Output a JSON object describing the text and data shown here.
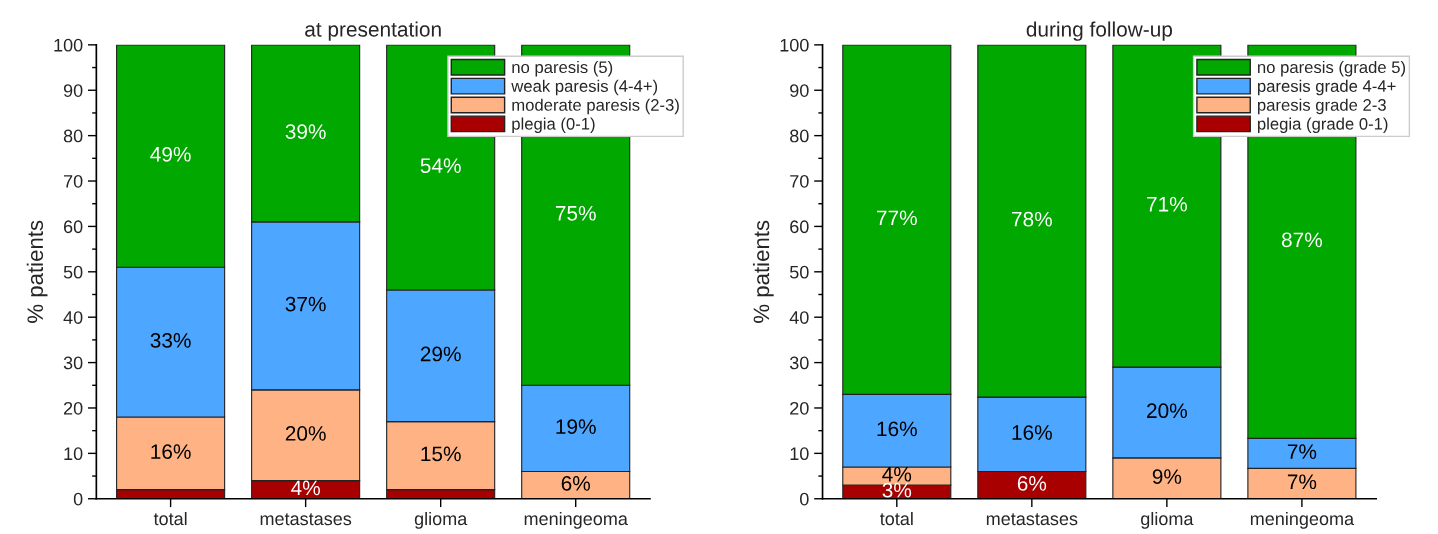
{
  "chart_data": [
    {
      "type": "bar",
      "stacked": true,
      "title": "at presentation",
      "ylabel": "% patients",
      "categories": [
        "total",
        "metastases",
        "glioma",
        "meningeoma"
      ],
      "ylim": [
        0,
        100
      ],
      "yticks": [
        0,
        10,
        20,
        30,
        40,
        50,
        60,
        70,
        80,
        90,
        100
      ],
      "grid": false,
      "legend": "top right",
      "series": [
        {
          "name": "plegia (0-1)",
          "color": "#a80000",
          "values": [
            2,
            4,
            2,
            0
          ],
          "value_labels": [
            null,
            "4%",
            null,
            null
          ]
        },
        {
          "name": "moderate paresis (2-3)",
          "color": "#ffb385",
          "values": [
            16,
            20,
            15,
            6
          ],
          "value_labels": [
            "16%",
            "20%",
            "15%",
            "6%"
          ]
        },
        {
          "name": "weak paresis (4-4+)",
          "color": "#4da6ff",
          "values": [
            33,
            37,
            29,
            19
          ],
          "value_labels": [
            "33%",
            "37%",
            "29%",
            "19%"
          ]
        },
        {
          "name": "no paresis (5)",
          "color": "#00a800",
          "values": [
            49,
            39,
            54,
            75
          ],
          "value_labels": [
            "49%",
            "39%",
            "54%",
            "75%"
          ]
        }
      ]
    },
    {
      "type": "bar",
      "stacked": true,
      "title": "during follow-up",
      "ylabel": "% patients",
      "categories": [
        "total",
        "metastases",
        "glioma",
        "meningeoma"
      ],
      "ylim": [
        0,
        100
      ],
      "yticks": [
        0,
        10,
        20,
        30,
        40,
        50,
        60,
        70,
        80,
        90,
        100
      ],
      "grid": false,
      "legend": "top right",
      "series": [
        {
          "name": "plegia (grade 0-1)",
          "color": "#a80000",
          "values": [
            3,
            6,
            0,
            0
          ],
          "value_labels": [
            "3%",
            "6%",
            null,
            null
          ]
        },
        {
          "name": "paresis grade 2-3",
          "color": "#ffb385",
          "values": [
            4,
            0,
            9,
            6.7
          ],
          "value_labels": [
            "4%",
            null,
            "9%",
            "7%"
          ]
        },
        {
          "name": "paresis grade 4-4+",
          "color": "#4da6ff",
          "values": [
            16,
            16.4,
            20,
            6.6
          ],
          "value_labels": [
            "16%",
            "16%",
            "20%",
            "7%"
          ]
        },
        {
          "name": "no paresis (grade 5)",
          "color": "#00a800",
          "values": [
            77,
            77.6,
            71,
            86.7
          ],
          "value_labels": [
            "77%",
            "78%",
            "71%",
            "87%"
          ]
        }
      ]
    }
  ]
}
